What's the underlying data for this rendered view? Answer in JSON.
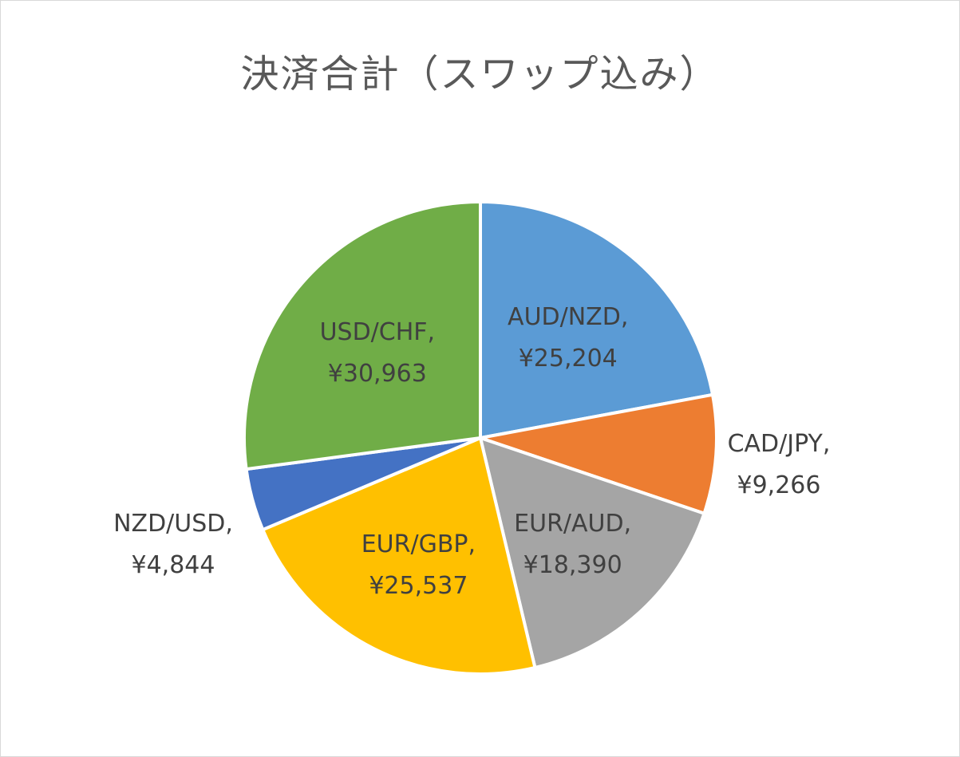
{
  "chart_data": {
    "type": "pie",
    "title": "決済合計（スワップ込み）",
    "categories": [
      "AUD/NZD",
      "CAD/JPY",
      "EUR/AUD",
      "EUR/GBP",
      "NZD/USD",
      "USD/CHF"
    ],
    "values": [
      25204,
      9266,
      18390,
      25537,
      4844,
      30963
    ],
    "value_labels": [
      "¥25,204",
      "¥9,266",
      "¥18,390",
      "¥25,537",
      "¥4,844",
      "¥30,963"
    ],
    "colors": [
      "#5B9BD5",
      "#ED7D31",
      "#A5A5A5",
      "#FFC000",
      "#4472C4",
      "#70AD47"
    ],
    "start_angle": "12 o'clock, clockwise",
    "legend": "none"
  }
}
